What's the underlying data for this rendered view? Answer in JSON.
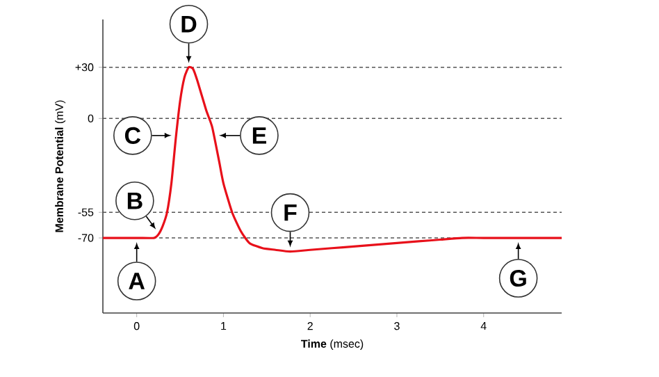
{
  "chart_data": {
    "type": "line",
    "xlabel": "**Time** (msec)",
    "ylabel": "**Membrane Potential** (mV)",
    "x": [
      -0.39,
      0.0,
      0.2,
      0.25,
      0.3,
      0.35,
      0.4,
      0.45,
      0.5,
      0.55,
      0.6,
      0.65,
      0.7,
      0.8,
      0.87,
      0.95,
      1.0,
      1.1,
      1.2,
      1.3,
      1.45,
      1.6,
      1.77,
      2.0,
      2.25,
      2.5,
      2.75,
      3.0,
      3.25,
      3.5,
      3.75,
      4.0,
      4.5,
      4.9
    ],
    "series": [
      {
        "color": "#e8101a",
        "values": [
          -70,
          -70,
          -70,
          -68,
          -63,
          -55,
          -38,
          -12,
          10,
          24,
          30,
          29,
          22,
          5,
          -5,
          -25,
          -38,
          -55,
          -66,
          -73,
          -76,
          -77,
          -78,
          -77,
          -76,
          -75,
          -74,
          -73,
          -72,
          -71,
          -70,
          -70,
          -70,
          -70
        ]
      }
    ],
    "xlim": [
      -0.39,
      4.9
    ],
    "ylim": [
      -114,
      58
    ],
    "xticks": [
      0,
      1,
      2,
      3,
      4
    ],
    "yticks": [
      -70,
      -55,
      0,
      {
        "value": 30,
        "label": "+30"
      }
    ],
    "line_style": "solid",
    "ref_lines": [
      {
        "axis": "y",
        "value": 30,
        "color": "#555555",
        "line_style": "dashed"
      },
      {
        "axis": "y",
        "value": 0,
        "color": "#555555",
        "line_style": "dashed"
      },
      {
        "axis": "y",
        "value": -55,
        "color": "#555555",
        "line_style": "dashed"
      },
      {
        "axis": "y",
        "value": -70,
        "color": "#555555",
        "line_style": "dashed"
      }
    ],
    "annotations": [
      {
        "text": "A",
        "x": 0,
        "y": -70
      },
      {
        "text": "B",
        "x": 0.25,
        "y": -67
      },
      {
        "text": "C",
        "x": 0.45,
        "y": -10
      },
      {
        "text": "D",
        "x": 0.6,
        "y": 30
      },
      {
        "text": "E",
        "x": 0.9,
        "y": -10
      },
      {
        "text": "F",
        "x": 1.77,
        "y": -78
      },
      {
        "text": "G",
        "x": 4.4,
        "y": -70
      }
    ]
  }
}
